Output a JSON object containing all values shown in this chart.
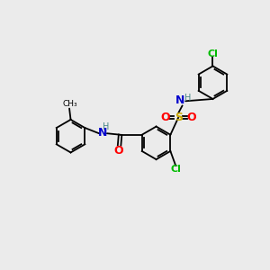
{
  "background_color": "#ebebeb",
  "bond_color": "#000000",
  "colors": {
    "C": "#000000",
    "N": "#0000cc",
    "O": "#ff0000",
    "S": "#ccaa00",
    "Cl": "#00bb00",
    "H": "#4a8888"
  },
  "figsize": [
    3.0,
    3.0
  ],
  "dpi": 100,
  "bond_lw": 1.3,
  "ring_r": 0.62,
  "font_size": 8
}
